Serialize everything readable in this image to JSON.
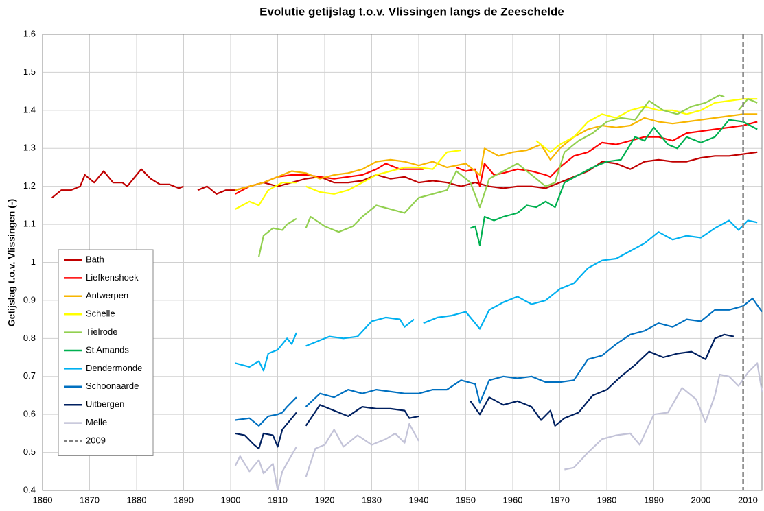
{
  "chart_data": {
    "type": "line",
    "title": "Evolutie getijslag t.o.v. Vlissingen langs de Zeeschelde",
    "y_label": "Getijslag t.o.v. Vlissingen (-)",
    "xlim": [
      1860,
      2013
    ],
    "xticks": [
      1860,
      1870,
      1880,
      1890,
      1900,
      1910,
      1920,
      1930,
      1940,
      1950,
      1960,
      1970,
      1980,
      1990,
      2000,
      2010
    ],
    "ylim": [
      0.4,
      1.6
    ],
    "yticks": [
      0.4,
      0.5,
      0.6,
      0.7,
      0.8,
      0.9,
      1,
      1.1,
      1.2,
      1.3,
      1.4,
      1.5,
      1.6
    ],
    "grid": true,
    "legend": "lower left",
    "series": [
      {
        "name": "Bath",
        "color": "#c00000",
        "x": [
          1862,
          1864,
          1866,
          1868,
          1869,
          1871,
          1873,
          1875,
          1877,
          1878,
          1880,
          1881,
          1883,
          1885,
          1887,
          1889,
          1890,
          1892,
          1893,
          1895,
          1897,
          1899,
          1901,
          1904,
          1907,
          1910,
          1913,
          1916,
          1919,
          1922,
          1925,
          1928,
          1931,
          1934,
          1937,
          1940,
          1943,
          1946,
          1949,
          1952,
          1955,
          1958,
          1961,
          1964,
          1967,
          1970,
          1973,
          1976,
          1979,
          1982,
          1985,
          1988,
          1991,
          1994,
          1997,
          2000,
          2003,
          2006,
          2009,
          2012
        ],
        "values": [
          1.17,
          1.19,
          1.19,
          1.2,
          1.23,
          1.21,
          1.24,
          1.21,
          1.21,
          1.2,
          1.23,
          1.245,
          1.22,
          1.205,
          1.205,
          1.195,
          1.2,
          null,
          1.19,
          1.2,
          1.18,
          1.19,
          1.19,
          1.2,
          1.21,
          1.2,
          1.21,
          1.22,
          1.225,
          1.21,
          1.21,
          1.215,
          1.23,
          1.22,
          1.225,
          1.21,
          1.215,
          1.21,
          1.2,
          1.21,
          1.2,
          1.195,
          1.2,
          1.2,
          1.195,
          1.21,
          1.225,
          1.24,
          1.265,
          1.26,
          1.245,
          1.265,
          1.27,
          1.265,
          1.265,
          1.275,
          1.28,
          1.28,
          1.285,
          1.29
        ]
      },
      {
        "name": "Liefkenshoek",
        "color": "#ff0000",
        "x": [
          1901,
          1904,
          1907,
          1910,
          1913,
          1916,
          1919,
          1922,
          1925,
          1928,
          1931,
          1933,
          1936,
          1939,
          1941,
          1944,
          1948,
          1950,
          1952,
          1953,
          1954,
          1956,
          1958,
          1961,
          1964,
          1967,
          1968,
          1970,
          1973,
          1976,
          1979,
          1982,
          1985,
          1988,
          1991,
          1994,
          1997,
          2000,
          2003,
          2006,
          2009,
          2012
        ],
        "values": [
          1.18,
          1.2,
          1.21,
          1.225,
          1.23,
          1.23,
          1.225,
          1.22,
          1.225,
          1.23,
          1.245,
          1.26,
          1.245,
          1.245,
          1.245,
          null,
          1.25,
          1.24,
          1.245,
          1.2,
          1.26,
          1.23,
          1.235,
          1.245,
          1.24,
          1.23,
          1.225,
          1.25,
          1.28,
          1.29,
          1.315,
          1.31,
          1.32,
          1.33,
          1.33,
          1.32,
          1.34,
          1.345,
          1.35,
          1.355,
          1.36,
          1.37
        ]
      },
      {
        "name": "Antwerpen",
        "color": "#f7b500",
        "x": [
          1901,
          1904,
          1907,
          1910,
          1913,
          1916,
          1919,
          1922,
          1925,
          1928,
          1931,
          1934,
          1937,
          1940,
          1943,
          1946,
          1950,
          1953,
          1954,
          1957,
          1960,
          1963,
          1966,
          1968,
          1970,
          1973,
          1976,
          1979,
          1982,
          1985,
          1988,
          1991,
          1994,
          1997,
          2000,
          2003,
          2006,
          2009,
          2012
        ],
        "values": [
          1.19,
          1.2,
          1.21,
          1.225,
          1.24,
          1.235,
          1.22,
          1.23,
          1.235,
          1.245,
          1.265,
          1.27,
          1.265,
          1.255,
          1.265,
          1.25,
          1.26,
          1.23,
          1.3,
          1.28,
          1.29,
          1.295,
          1.31,
          1.27,
          1.3,
          1.33,
          1.35,
          1.36,
          1.355,
          1.36,
          1.38,
          1.37,
          1.365,
          1.37,
          1.375,
          1.38,
          1.385,
          1.39,
          1.39
        ]
      },
      {
        "name": "Schelle",
        "color": "#ffff00",
        "x": [
          1901,
          1904,
          1906,
          1908,
          1911,
          1914,
          1915,
          1916,
          1919,
          1922,
          1925,
          1928,
          1931,
          1934,
          1937,
          1940,
          1943,
          1946,
          1949,
          1957,
          1965,
          1968,
          1970,
          1973,
          1976,
          1979,
          1982,
          1985,
          1988,
          1991,
          1994,
          1997,
          2000,
          2003,
          2006,
          2009,
          2012
        ],
        "values": [
          1.14,
          1.16,
          1.15,
          1.19,
          1.21,
          1.21,
          null,
          1.2,
          1.185,
          1.18,
          1.19,
          1.21,
          1.23,
          1.24,
          1.25,
          1.25,
          1.245,
          1.29,
          1.295,
          null,
          1.32,
          1.29,
          1.31,
          1.33,
          1.37,
          1.39,
          1.38,
          1.4,
          1.41,
          1.4,
          1.4,
          1.39,
          1.4,
          1.42,
          1.425,
          1.43,
          1.43
        ]
      },
      {
        "name": "Tielrode",
        "color": "#92d050",
        "x": [
          1906,
          1907,
          1909,
          1911,
          1912,
          1914,
          1915,
          1916,
          1917,
          1920,
          1923,
          1926,
          1928,
          1931,
          1934,
          1937,
          1940,
          1943,
          1946,
          1948,
          1951,
          1953,
          1955,
          1958,
          1961,
          1964,
          1967,
          1969,
          1971,
          1974,
          1977,
          1980,
          1983,
          1986,
          1989,
          1992,
          1995,
          1998,
          2001,
          2004,
          2005,
          2007,
          2008,
          2010,
          2012
        ],
        "values": [
          1.015,
          1.07,
          1.09,
          1.085,
          1.1,
          1.115,
          null,
          1.09,
          1.12,
          1.095,
          1.08,
          1.095,
          1.12,
          1.15,
          1.14,
          1.13,
          1.17,
          1.18,
          1.19,
          1.24,
          1.21,
          1.145,
          1.22,
          1.24,
          1.26,
          1.23,
          1.2,
          1.21,
          1.29,
          1.32,
          1.34,
          1.37,
          1.38,
          1.375,
          1.425,
          1.4,
          1.39,
          1.41,
          1.42,
          1.44,
          1.435,
          null,
          1.4,
          1.43,
          1.42
        ]
      },
      {
        "name": "St Amands",
        "color": "#00b050",
        "x": [
          1951,
          1952,
          1953,
          1954,
          1956,
          1958,
          1961,
          1963,
          1965,
          1967,
          1969,
          1971,
          1974,
          1977,
          1980,
          1983,
          1986,
          1988,
          1990,
          1993,
          1995,
          1997,
          2000,
          2003,
          2006,
          2009,
          2012
        ],
        "values": [
          1.09,
          1.095,
          1.045,
          1.12,
          1.11,
          1.12,
          1.13,
          1.15,
          1.145,
          1.16,
          1.145,
          1.21,
          1.23,
          1.25,
          1.265,
          1.27,
          1.33,
          1.32,
          1.355,
          1.31,
          1.3,
          1.33,
          1.315,
          1.33,
          1.375,
          1.37,
          1.35
        ]
      },
      {
        "name": "Dendermonde",
        "color": "#00b0f0",
        "x": [
          1901,
          1904,
          1906,
          1907,
          1908,
          1910,
          1912,
          1913,
          1914,
          1915,
          1916,
          1919,
          1921,
          1924,
          1927,
          1930,
          1933,
          1936,
          1937,
          1939,
          1940,
          1941,
          1944,
          1947,
          1950,
          1953,
          1955,
          1958,
          1961,
          1964,
          1967,
          1970,
          1973,
          1976,
          1979,
          1982,
          1985,
          1988,
          1991,
          1994,
          1997,
          2000,
          2003,
          2006,
          2008,
          2010,
          2012
        ],
        "values": [
          0.735,
          0.725,
          0.74,
          0.715,
          0.76,
          0.77,
          0.8,
          0.785,
          0.815,
          null,
          0.78,
          0.795,
          0.805,
          0.8,
          0.805,
          0.845,
          0.855,
          0.85,
          0.83,
          0.85,
          null,
          0.84,
          0.855,
          0.86,
          0.87,
          0.825,
          0.875,
          0.895,
          0.91,
          0.89,
          0.9,
          0.93,
          0.945,
          0.985,
          1.005,
          1.01,
          1.03,
          1.05,
          1.08,
          1.06,
          1.07,
          1.065,
          1.09,
          1.11,
          1.085,
          1.11,
          1.105
        ]
      },
      {
        "name": "Schoonaarde",
        "color": "#0070c0",
        "x": [
          1901,
          1904,
          1906,
          1908,
          1910,
          1911,
          1912,
          1914,
          1915,
          1916,
          1919,
          1922,
          1925,
          1928,
          1931,
          1934,
          1937,
          1940,
          1943,
          1946,
          1949,
          1952,
          1953,
          1955,
          1958,
          1961,
          1964,
          1967,
          1970,
          1973,
          1976,
          1979,
          1982,
          1985,
          1988,
          1991,
          1994,
          1997,
          2000,
          2003,
          2006,
          2009,
          2011,
          2013
        ],
        "values": [
          0.585,
          0.59,
          0.57,
          0.595,
          0.6,
          0.605,
          0.62,
          0.645,
          null,
          0.62,
          0.655,
          0.645,
          0.665,
          0.655,
          0.665,
          0.66,
          0.655,
          0.655,
          0.665,
          0.665,
          0.69,
          0.68,
          0.63,
          0.69,
          0.7,
          0.695,
          0.7,
          0.685,
          0.685,
          0.69,
          0.745,
          0.755,
          0.785,
          0.81,
          0.82,
          0.84,
          0.83,
          0.85,
          0.845,
          0.875,
          0.875,
          0.885,
          0.905,
          0.87
        ]
      },
      {
        "name": "Uitbergen",
        "color": "#002060",
        "x": [
          1901,
          1903,
          1905,
          1906,
          1907,
          1909,
          1910,
          1911,
          1914,
          1915,
          1916,
          1919,
          1922,
          1925,
          1928,
          1931,
          1934,
          1937,
          1938,
          1940,
          1945,
          1951,
          1953,
          1955,
          1958,
          1961,
          1964,
          1966,
          1968,
          1969,
          1971,
          1974,
          1977,
          1980,
          1983,
          1986,
          1989,
          1992,
          1995,
          1998,
          2001,
          2003,
          2005,
          2007
        ],
        "values": [
          0.55,
          0.545,
          0.52,
          0.51,
          0.55,
          0.545,
          0.515,
          0.56,
          0.605,
          null,
          0.57,
          0.625,
          0.61,
          0.595,
          0.62,
          0.615,
          0.615,
          0.61,
          0.59,
          0.595,
          null,
          0.635,
          0.6,
          0.645,
          0.625,
          0.635,
          0.62,
          0.585,
          0.61,
          0.57,
          0.59,
          0.605,
          0.65,
          0.665,
          0.7,
          0.73,
          0.765,
          0.75,
          0.76,
          0.765,
          0.745,
          0.8,
          0.81,
          0.805
        ]
      },
      {
        "name": "Melle",
        "color": "#c3c3d8",
        "x": [
          1901,
          1902,
          1904,
          1906,
          1907,
          1909,
          1910,
          1911,
          1914,
          1915,
          1916,
          1918,
          1920,
          1922,
          1924,
          1927,
          1930,
          1933,
          1935,
          1937,
          1938,
          1940,
          1955,
          1971,
          1973,
          1976,
          1979,
          1982,
          1985,
          1987,
          1990,
          1993,
          1996,
          1999,
          2001,
          2003,
          2004,
          2006,
          2008,
          2010,
          2012,
          2013
        ],
        "values": [
          0.465,
          0.49,
          0.45,
          0.48,
          0.445,
          0.47,
          0.4,
          0.45,
          0.515,
          null,
          0.435,
          0.51,
          0.52,
          0.56,
          0.515,
          0.545,
          0.52,
          0.535,
          0.55,
          0.525,
          0.575,
          0.53,
          null,
          0.455,
          0.46,
          0.5,
          0.535,
          0.545,
          0.55,
          0.52,
          0.6,
          0.605,
          0.67,
          0.64,
          0.58,
          0.65,
          0.705,
          0.7,
          0.675,
          0.71,
          0.735,
          0.66
        ]
      }
    ],
    "vline": {
      "name": "2009",
      "x": 2009,
      "color": "#7f7f7f"
    }
  }
}
